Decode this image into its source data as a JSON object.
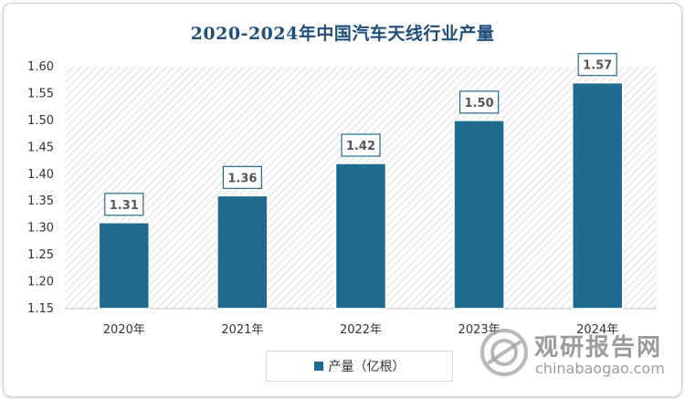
{
  "chart_data": {
    "type": "bar",
    "title": "2020-2024年中国汽车天线行业产量",
    "categories": [
      "2020年",
      "2021年",
      "2022年",
      "2023年",
      "2024年"
    ],
    "series": [
      {
        "name": "产量（亿根）",
        "values": [
          1.31,
          1.36,
          1.42,
          1.5,
          1.57
        ]
      }
    ],
    "ylim": [
      1.15,
      1.6
    ],
    "yticks": [
      "1.15",
      "1.20",
      "1.25",
      "1.30",
      "1.35",
      "1.40",
      "1.45",
      "1.50",
      "1.55",
      "1.60"
    ],
    "data_labels": [
      "1.31",
      "1.36",
      "1.42",
      "1.50",
      "1.57"
    ],
    "legend": "bottom",
    "bar_color": "#1e6b8f",
    "plot_background": "diagonal-hatch"
  },
  "watermark": {
    "name": "观研报告网",
    "url": "chinabaogao.com"
  }
}
